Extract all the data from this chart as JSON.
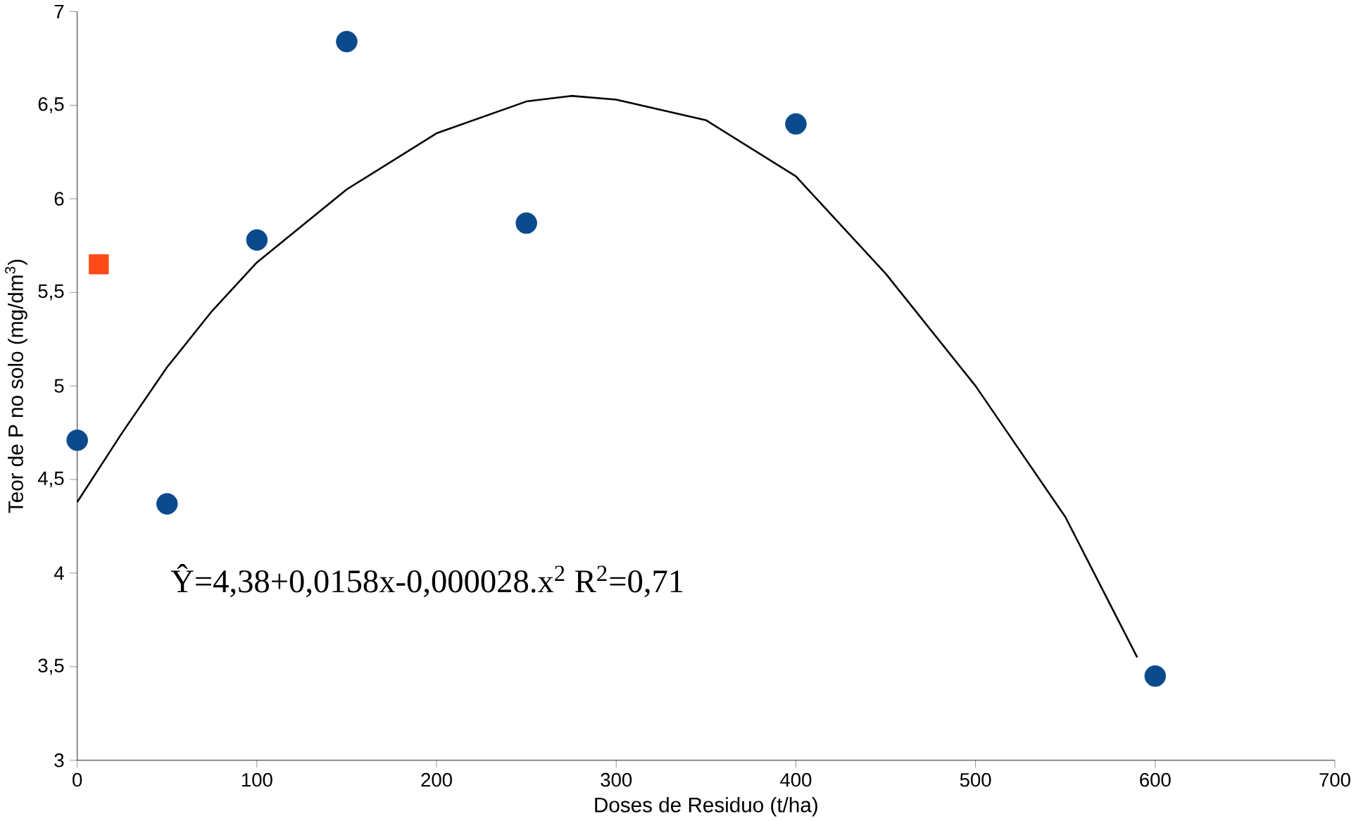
{
  "chart_data": {
    "type": "scatter",
    "xlabel": "Doses de Residuo (t/ha)",
    "ylabel": "Teor de P no solo (mg/dm$^{3}$)",
    "xlim": [
      0,
      700
    ],
    "xticks": [
      0,
      100,
      200,
      300,
      400,
      500,
      600,
      700
    ],
    "ylim": [
      3,
      7
    ],
    "yticks": [
      3,
      {
        "value": 3.5,
        "label": "3,5"
      },
      4,
      {
        "value": 4.5,
        "label": "4,5"
      },
      5,
      {
        "value": 5.5,
        "label": "5,5"
      },
      6,
      {
        "value": 6.5,
        "label": "6,5"
      },
      7
    ],
    "annotations": [
      "Ŷ=4,38+0,0158x-0,000028.x$^{2}$   R$^{2}$=0,71"
    ],
    "series": [
      {
        "type": "line",
        "color": "#000000",
        "marker": "none",
        "x": [
          0,
          25,
          50,
          75,
          100,
          150,
          200,
          250,
          275,
          300,
          350,
          400,
          450,
          500,
          550,
          590
        ],
        "values": [
          4.38,
          4.75,
          5.1,
          5.4,
          5.66,
          6.05,
          6.35,
          6.52,
          6.55,
          6.53,
          6.42,
          6.12,
          5.6,
          5.0,
          4.3,
          3.55
        ]
      },
      {
        "color": "#0b4a8c",
        "marker": "circle",
        "x": [
          0,
          50,
          100,
          150,
          250,
          400,
          600
        ],
        "values": [
          4.71,
          4.37,
          5.78,
          6.84,
          5.87,
          6.4,
          3.45
        ]
      },
      {
        "color": "#ff4a1a",
        "marker": "square",
        "x": [
          12
        ],
        "values": [
          5.65
        ]
      }
    ]
  }
}
